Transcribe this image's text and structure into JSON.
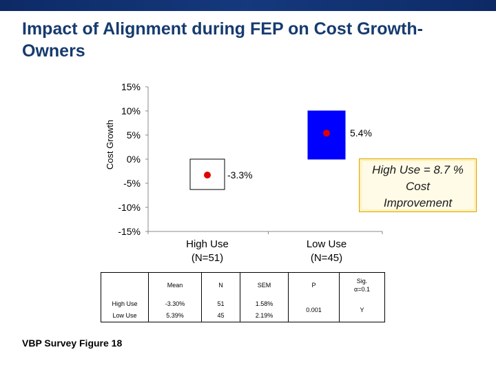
{
  "slide": {
    "title": "Impact of Alignment during FEP on Cost Growth- Owners",
    "footer": "VBP Survey Figure 18",
    "callout": "High Use = 8.7 %\nCost\nImprovement"
  },
  "colors": {
    "banner": "#15397d",
    "title": "#163b6e",
    "low_use_box": "#0000ff",
    "point": "#e00000",
    "callout_border": "#d9a400"
  },
  "chart_data": {
    "type": "scatter",
    "title": "",
    "xlabel": "",
    "ylabel": "Cost Growth",
    "ylim": [
      -15,
      15
    ],
    "y_unit": "%",
    "y_ticks": [
      "15%",
      "10%",
      "5%",
      "0%",
      "-5%",
      "-10%",
      "-15%"
    ],
    "y_tick_values": [
      15,
      10,
      5,
      0,
      -5,
      -10,
      -15
    ],
    "categories": [
      "High Use\n(N=51)",
      "Low Use\n(N=45)"
    ],
    "series": [
      {
        "values": [
          -3.3,
          5.4
        ],
        "labels": [
          "-3.3%",
          "5.4%"
        ],
        "box_range": [
          [
            -6.3,
            0
          ],
          [
            0,
            10
          ]
        ],
        "box_colors": [
          "#ffffff",
          "#0000ff"
        ]
      }
    ]
  },
  "table": {
    "headers": [
      "",
      "Mean",
      "N",
      "SEM",
      "P",
      "Sig.\nα=0.1"
    ],
    "rows": [
      [
        "High Use",
        "-3.30%",
        "51",
        "1.58%"
      ],
      [
        "Low Use",
        "5.39%",
        "45",
        "2.19%"
      ]
    ],
    "p_value": "0.001",
    "sig_value": "Y"
  }
}
